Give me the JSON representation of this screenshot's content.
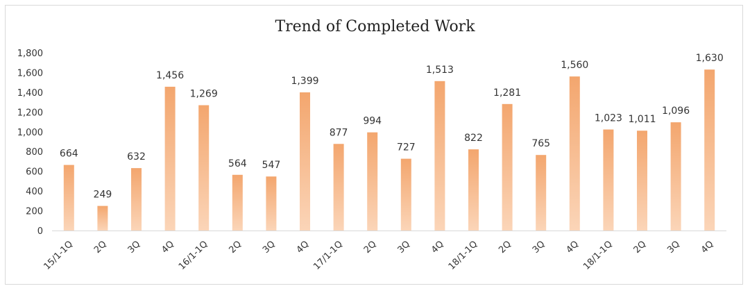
{
  "chart_data": {
    "type": "bar",
    "title": "Trend of Completed Work",
    "categories": [
      "15/1-1Q",
      "2Q",
      "3Q",
      "4Q",
      "16/1-1Q",
      "2Q",
      "3Q",
      "4Q",
      "17/1-1Q",
      "2Q",
      "3Q",
      "4Q",
      "18/1-1Q",
      "2Q",
      "3Q",
      "4Q",
      "18/1-1Q",
      "2Q",
      "3Q",
      "4Q"
    ],
    "values": [
      664,
      249,
      632,
      1456,
      1269,
      564,
      547,
      1399,
      877,
      994,
      727,
      1513,
      822,
      1281,
      765,
      1560,
      1023,
      1011,
      1096,
      1630
    ],
    "data_labels": [
      "664",
      "249",
      "632",
      "1,456",
      "1,269",
      "564",
      "547",
      "1,399",
      "877",
      "994",
      "727",
      "1,513",
      "822",
      "1,281",
      "765",
      "1,560",
      "1,023",
      "1,011",
      "1,096",
      "1,630"
    ],
    "y_ticks": [
      "0",
      "200",
      "400",
      "600",
      "800",
      "1,000",
      "1,200",
      "1,400",
      "1,600",
      "1,800"
    ],
    "ylim": [
      0,
      1800
    ],
    "grid": false,
    "legend": "none",
    "xlabel": "",
    "ylabel": "",
    "colors": {
      "bar_top": "#f3a66e",
      "bar_bottom": "#fbd5b8",
      "axis": "#d9d9d9"
    }
  }
}
